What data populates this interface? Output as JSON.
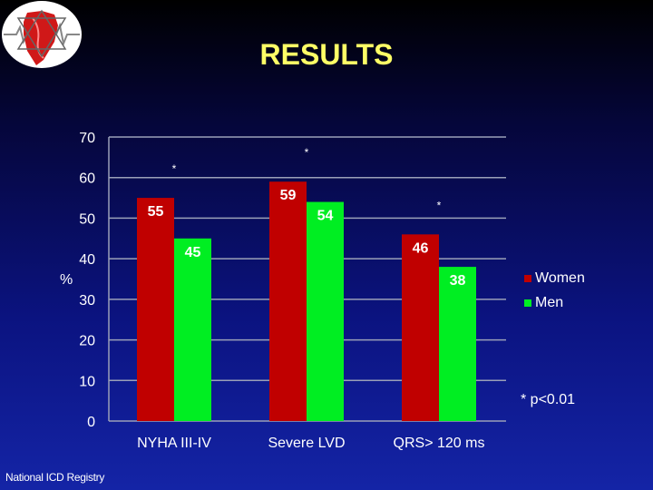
{
  "slide": {
    "title": "RESULTS",
    "footer": "National ICD Registry",
    "note": "* p<0.01",
    "y_unit": "%"
  },
  "colors": {
    "women": "#c00000",
    "men": "#00ee22",
    "title": "#ffff66"
  },
  "icons": {
    "logo": "heart-ecg-logo-icon"
  },
  "chart_data": {
    "type": "bar",
    "categories": [
      "NYHA III-IV",
      "Severe LVD",
      "QRS> 120 ms"
    ],
    "series": [
      {
        "name": "Women",
        "values": [
          55,
          59,
          46
        ]
      },
      {
        "name": "Men",
        "values": [
          45,
          54,
          38
        ]
      }
    ],
    "ylim": [
      0,
      70
    ],
    "yticks": [
      0,
      10,
      20,
      30,
      40,
      50,
      60,
      70
    ],
    "ylabel": "%",
    "significance_markers": [
      "*",
      "*",
      "*"
    ],
    "grid": "horizontal",
    "legend": "right"
  }
}
